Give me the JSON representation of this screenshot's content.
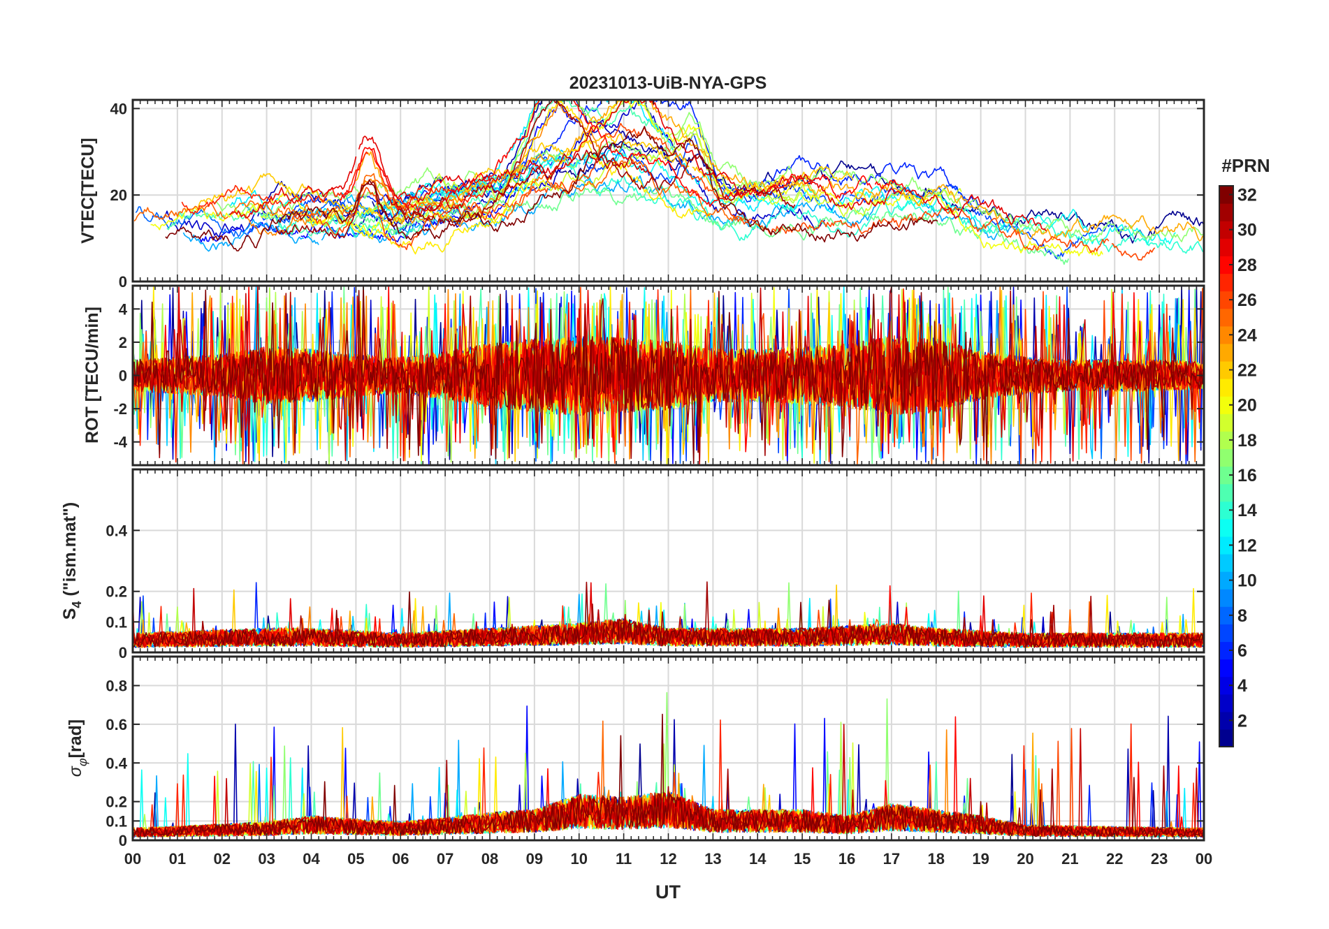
{
  "chart_data": {
    "title": "20231013-UiB-NYA-GPS",
    "type": "line",
    "x_axis": {
      "label": "UT",
      "range": [
        0,
        24
      ],
      "tick_labels": [
        "00",
        "01",
        "02",
        "03",
        "04",
        "05",
        "06",
        "07",
        "08",
        "09",
        "10",
        "11",
        "12",
        "13",
        "14",
        "15",
        "16",
        "17",
        "18",
        "19",
        "20",
        "21",
        "22",
        "23",
        "00"
      ]
    },
    "colorbar": {
      "title": "#PRN",
      "range": [
        1,
        32
      ],
      "tick_values": [
        2,
        4,
        6,
        8,
        10,
        12,
        14,
        16,
        18,
        20,
        22,
        24,
        26,
        28,
        30,
        32
      ],
      "tick_labels": [
        "2",
        "4",
        "6",
        "8",
        "10",
        "12",
        "14",
        "16",
        "18",
        "20",
        "22",
        "24",
        "26",
        "28",
        "30",
        "32"
      ],
      "colormap": "jet",
      "jet_stops": [
        "#00008f",
        "#0000ff",
        "#0080ff",
        "#00ffff",
        "#80ff80",
        "#ffff00",
        "#ff8000",
        "#ff0000",
        "#800000"
      ]
    },
    "panels": [
      {
        "id": "vtec",
        "ylabel": "VTEC[TECU]",
        "ylim": [
          0,
          42
        ],
        "yticks": [
          0,
          20,
          40
        ],
        "ytick_labels": [
          "0",
          "20",
          "40"
        ],
        "grid": true,
        "envelope": [
          [
            0,
            15
          ],
          [
            1,
            15
          ],
          [
            2,
            14
          ],
          [
            3,
            16
          ],
          [
            4,
            17
          ],
          [
            5,
            16
          ],
          [
            6,
            16
          ],
          [
            7,
            18
          ],
          [
            8,
            20
          ],
          [
            9,
            24
          ],
          [
            10,
            26
          ],
          [
            11,
            27
          ],
          [
            12,
            24
          ],
          [
            13,
            20
          ],
          [
            14,
            19
          ],
          [
            15,
            20
          ],
          [
            16,
            19
          ],
          [
            17,
            20
          ],
          [
            18,
            19
          ],
          [
            19,
            14
          ],
          [
            20,
            11
          ],
          [
            21,
            10
          ],
          [
            22,
            9
          ],
          [
            23,
            9
          ],
          [
            24,
            9
          ]
        ],
        "spread": 4.5,
        "noise": 2.0,
        "bursts": [
          {
            "t": 9.5,
            "w": 0.6,
            "a": 18
          },
          {
            "t": 11.3,
            "w": 0.8,
            "a": 15
          },
          {
            "t": 5.3,
            "w": 0.25,
            "a": 12
          },
          {
            "t": 12.6,
            "w": 0.3,
            "a": 10
          }
        ]
      },
      {
        "id": "rot",
        "ylabel": "ROT [TECU/min]",
        "ylim": [
          -5.4,
          5.4
        ],
        "yticks": [
          -4,
          -2,
          0,
          2,
          4
        ],
        "ytick_labels": [
          "-4",
          "-2",
          "0",
          "2",
          "4"
        ],
        "grid": true,
        "envelope": [
          [
            0,
            0.6
          ],
          [
            2,
            0.8
          ],
          [
            3,
            1.1
          ],
          [
            4,
            1.0
          ],
          [
            5,
            0.8
          ],
          [
            6,
            0.7
          ],
          [
            7,
            0.9
          ],
          [
            8,
            1.2
          ],
          [
            9,
            1.4
          ],
          [
            10,
            1.5
          ],
          [
            11,
            1.4
          ],
          [
            12,
            1.3
          ],
          [
            13,
            1.0
          ],
          [
            14,
            1.0
          ],
          [
            15,
            1.1
          ],
          [
            16,
            1.2
          ],
          [
            17,
            1.5
          ],
          [
            18,
            1.4
          ],
          [
            19,
            0.9
          ],
          [
            20,
            0.7
          ],
          [
            21,
            0.6
          ],
          [
            22,
            0.6
          ],
          [
            23,
            0.6
          ],
          [
            24,
            0.5
          ]
        ],
        "spike_prob": 0.06,
        "spike_max": 5.4
      },
      {
        "id": "s4",
        "ylabel": "S4 (\"ism.mat\")",
        "ylabel_main": "S",
        "ylabel_sub": "4",
        "ylabel_rest": " (\"ism.mat\")",
        "ylim": [
          0,
          0.6
        ],
        "yticks": [
          0,
          0.1,
          0.2,
          0.4
        ],
        "ytick_labels": [
          "0",
          "0.1",
          "0.2",
          "0.4"
        ],
        "grid": true,
        "envelope": [
          [
            0,
            0.04
          ],
          [
            3,
            0.05
          ],
          [
            4,
            0.05
          ],
          [
            6,
            0.04
          ],
          [
            8,
            0.05
          ],
          [
            10,
            0.06
          ],
          [
            11,
            0.07
          ],
          [
            12,
            0.05
          ],
          [
            15,
            0.05
          ],
          [
            17,
            0.06
          ],
          [
            18,
            0.05
          ],
          [
            20,
            0.04
          ],
          [
            24,
            0.04
          ]
        ],
        "spike_prob": 0.012,
        "spike_max": 0.2
      },
      {
        "id": "sigma_phi",
        "ylabel": "σφ[rad]",
        "ylabel_main": "σ",
        "ylabel_sub": "φ",
        "ylabel_rest": "[rad]",
        "ylim": [
          0,
          0.95
        ],
        "yticks": [
          0,
          0.1,
          0.2,
          0.4,
          0.6,
          0.8
        ],
        "ytick_labels": [
          "0",
          "0.1",
          "0.2",
          "0.4",
          "0.6",
          "0.8"
        ],
        "grid": true,
        "envelope": [
          [
            0,
            0.04
          ],
          [
            3,
            0.06
          ],
          [
            4,
            0.08
          ],
          [
            6,
            0.06
          ],
          [
            8,
            0.09
          ],
          [
            9,
            0.1
          ],
          [
            10,
            0.15
          ],
          [
            11,
            0.14
          ],
          [
            12,
            0.16
          ],
          [
            13,
            0.1
          ],
          [
            14,
            0.1
          ],
          [
            15,
            0.1
          ],
          [
            16,
            0.08
          ],
          [
            17,
            0.12
          ],
          [
            18,
            0.1
          ],
          [
            19,
            0.08
          ],
          [
            20,
            0.05
          ],
          [
            24,
            0.04
          ]
        ],
        "spike_prob": 0.01,
        "spike_max": 0.7
      }
    ],
    "series": [
      {
        "prn": 1
      },
      {
        "prn": 2
      },
      {
        "prn": 3
      },
      {
        "prn": 5
      },
      {
        "prn": 6
      },
      {
        "prn": 7
      },
      {
        "prn": 8
      },
      {
        "prn": 10
      },
      {
        "prn": 11
      },
      {
        "prn": 12
      },
      {
        "prn": 13
      },
      {
        "prn": 14
      },
      {
        "prn": 15
      },
      {
        "prn": 16
      },
      {
        "prn": 17
      },
      {
        "prn": 18
      },
      {
        "prn": 19
      },
      {
        "prn": 20
      },
      {
        "prn": 21
      },
      {
        "prn": 22
      },
      {
        "prn": 23
      },
      {
        "prn": 24
      },
      {
        "prn": 25
      },
      {
        "prn": 26
      },
      {
        "prn": 27
      },
      {
        "prn": 28
      },
      {
        "prn": 29
      },
      {
        "prn": 30
      },
      {
        "prn": 31
      },
      {
        "prn": 32
      }
    ]
  }
}
